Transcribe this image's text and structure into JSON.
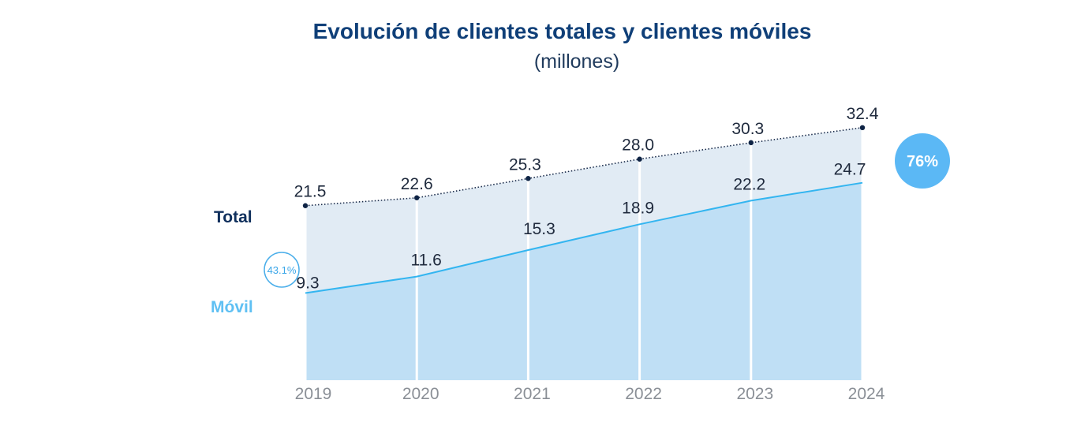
{
  "chart_data": {
    "type": "area",
    "title": "Evolución de clientes totales y clientes móviles",
    "subtitle": "(millones)",
    "x": [
      "2019",
      "2020",
      "2021",
      "2022",
      "2023",
      "2024"
    ],
    "series": [
      {
        "name": "Total",
        "values": [
          21.5,
          22.6,
          25.3,
          28.0,
          30.3,
          32.4
        ],
        "color": "#1a2b4a",
        "fill": "#e1ebf4"
      },
      {
        "name": "Móvil",
        "values": [
          9.3,
          11.6,
          15.3,
          18.9,
          22.2,
          24.7
        ],
        "color": "#33b5f0",
        "fill": "#bfdff5"
      }
    ],
    "value_labels": {
      "total": [
        "21.5",
        "22.6",
        "25.3",
        "28.0",
        "30.3",
        "32.4"
      ],
      "movil": [
        "9.3",
        "11.6",
        "15.3",
        "18.9",
        "22.2",
        "24.7"
      ]
    },
    "annotations": {
      "start_share": "43.1%",
      "end_share": "76%"
    },
    "grid": false
  }
}
